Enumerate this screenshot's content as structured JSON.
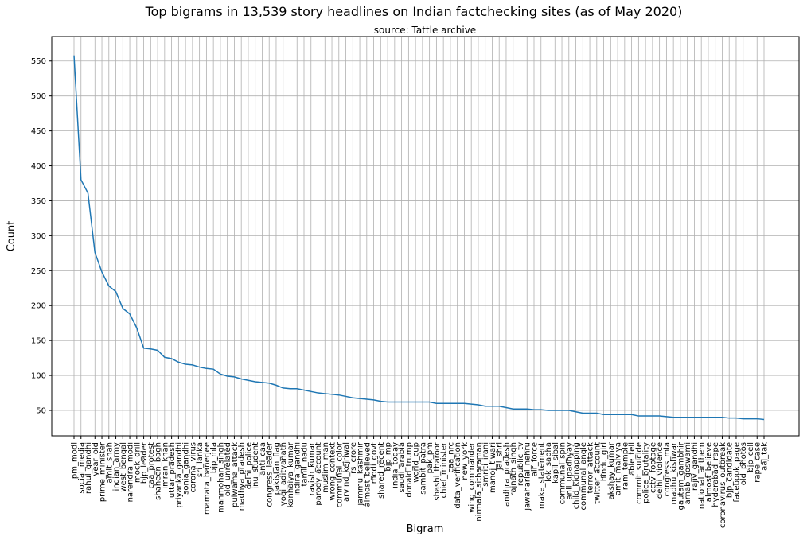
{
  "chart_data": {
    "type": "line",
    "title": "Top bigrams in 13,539 story headlines on Indian factchecking sites (as of May 2020)",
    "subtitle": "source: Tattle archive",
    "x_label": "Bigram",
    "y_label": "Count",
    "categories": [
      "pm_modi",
      "social_media",
      "rahul_gandhi",
      "year_old",
      "prime_minister",
      "amit_shah",
      "indian_army",
      "west_bengal",
      "narendra_modi",
      "mock_drill",
      "bjp_leader",
      "caa_protest",
      "shaheen_bagh",
      "imran_khan",
      "uttar_pradesh",
      "priyanka_gandhi",
      "sonia_gandhi",
      "corona_virus",
      "sri_lanka",
      "mamata_banerjee",
      "bjp_mla",
      "manmohan_singh",
      "old_unrelated",
      "pulwama_attack",
      "madhya_pradesh",
      "delhi_police",
      "jnu_student",
      "anti_caa",
      "congress_leader",
      "pakistan_flag",
      "yogi_adityanath",
      "kanhaiya_kumar",
      "indira_gandhi",
      "tamil_nadu",
      "ravish_kumar",
      "parody_account",
      "muslim_man",
      "wrong_context",
      "communal_color",
      "arvind_kejriwal",
      "rs_crore",
      "jammu_kashmir",
      "almost_believed",
      "modi_govt",
      "shared_recent",
      "bjp_mp",
      "india_today",
      "saudi_arabia",
      "donald_trump",
      "world_cup",
      "sambit_patra",
      "pak_pm",
      "shashi_tharoor",
      "chief_minister",
      "caa_nrc",
      "data_verification",
      "new_york",
      "wing_commander",
      "nirmala_sitharaman",
      "smriti_irani",
      "manoj_tiwari",
      "jai_shri",
      "andhra_pradesh",
      "rajnath_singh",
      "republic_tv",
      "jawaharlal_nehru",
      "air_force",
      "make_statement",
      "lok_sabha",
      "kapil_sibal",
      "communal_spin",
      "anil_upadhyay",
      "child_kidnapping",
      "communal_angle",
      "terror_attack",
      "twitter_account",
      "hindu_girl",
      "akshay_kumar",
      "amit_malviya",
      "ram_temple",
      "able_tell",
      "commit_suicide",
      "police_brutality",
      "cctv_footage",
      "delhi_violence",
      "congress_mla",
      "madhu_kishwar",
      "gautam_gambhir",
      "arnab_goswami",
      "rajiv_gandhi",
      "national_anthem",
      "almost_believe",
      "hyderabad_rape",
      "coronavirus_outbreak",
      "bjp_candidate",
      "facebook_page",
      "old_photos",
      "bjp_cell",
      "rape_case",
      "aaj_tak"
    ],
    "values": [
      558,
      380,
      361,
      276,
      248,
      228,
      220,
      196,
      188,
      168,
      139,
      138,
      136,
      126,
      124,
      119,
      116,
      115,
      112,
      110,
      109,
      102,
      99,
      98,
      95,
      93,
      91,
      90,
      89,
      86,
      82,
      81,
      81,
      79,
      77,
      75,
      74,
      73,
      72,
      70,
      68,
      67,
      66,
      65,
      63,
      62,
      62,
      62,
      62,
      62,
      62,
      62,
      60,
      60,
      60,
      60,
      60,
      59,
      58,
      56,
      56,
      56,
      54,
      52,
      52,
      52,
      51,
      51,
      50,
      50,
      50,
      50,
      48,
      46,
      46,
      46,
      44,
      44,
      44,
      44,
      44,
      42,
      42,
      42,
      42,
      41,
      40,
      40,
      40,
      40,
      40,
      40,
      40,
      40,
      39,
      39,
      38,
      38,
      38,
      37
    ],
    "color": "#1f77b4",
    "ylim": [
      13.6,
      585
    ],
    "yticks": [
      50,
      100,
      150,
      200,
      250,
      300,
      350,
      400,
      450,
      500,
      550
    ],
    "grid": true
  }
}
